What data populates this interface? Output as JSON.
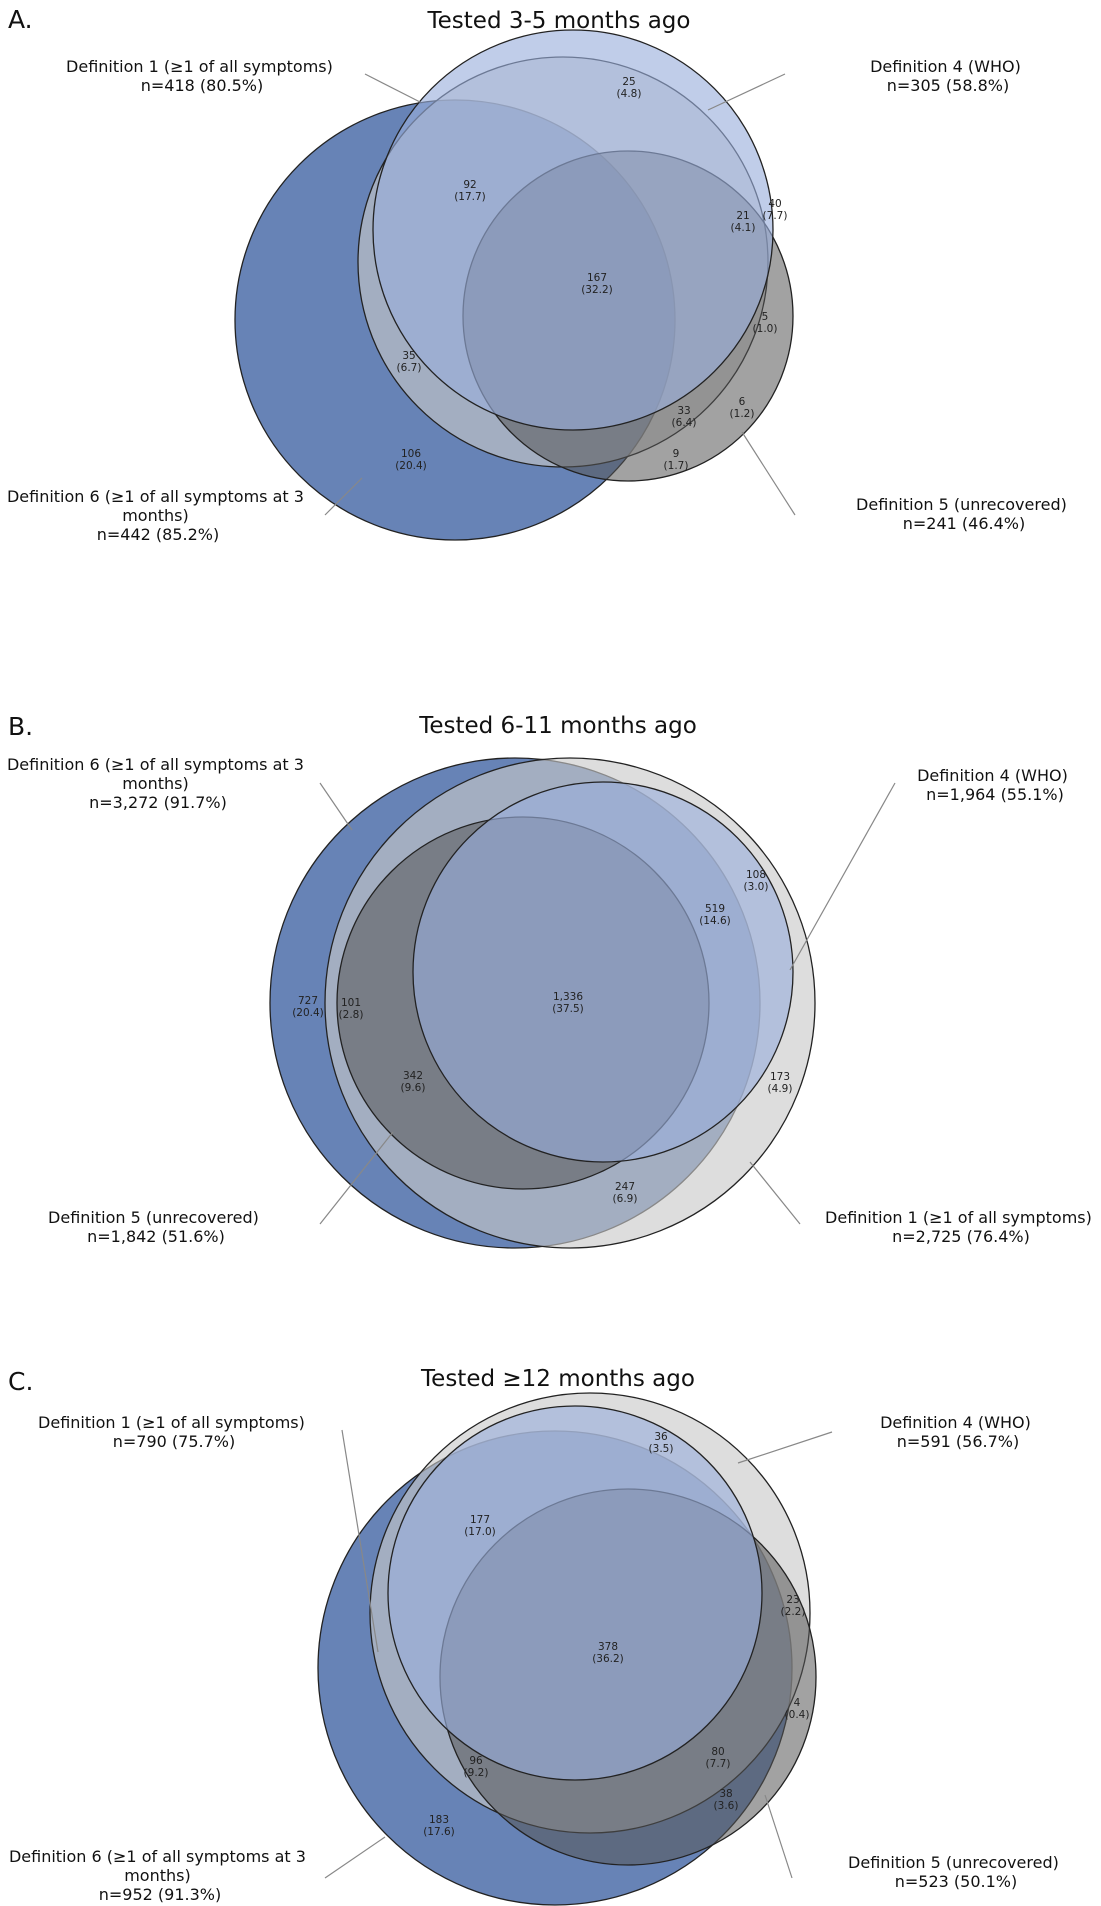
{
  "panels": [
    {
      "letter": "A.",
      "title": "Tested 3-5 months ago",
      "sets": {
        "def1": [
          "Definition 1 (≥1 of all symptoms)",
          "n=418 (80.5%)"
        ],
        "def4": [
          "Definition 4 (WHO)",
          "n=305 (58.8%)"
        ],
        "def5": [
          "Definition 5 (unrecovered)",
          "n=241 (46.4%)"
        ],
        "def6": [
          "Definition 6 (≥1 of all symptoms at 3",
          "months)",
          "n=442 (85.2%)"
        ]
      },
      "regions": [
        [
          "25",
          "(4.8)"
        ],
        [
          "92",
          "(17.7)"
        ],
        [
          "40",
          "(7.7)"
        ],
        [
          "21",
          "(4.1)"
        ],
        [
          "167",
          "(32.2)"
        ],
        [
          "5",
          "(1.0)"
        ],
        [
          "35",
          "(6.7)"
        ],
        [
          "33",
          "(6.4)"
        ],
        [
          "6",
          "(1.2)"
        ],
        [
          "106",
          "(20.4)"
        ],
        [
          "9",
          "(1.7)"
        ]
      ]
    },
    {
      "letter": "B.",
      "title": "Tested 6-11 months ago",
      "sets": {
        "def6": [
          "Definition 6 (≥1 of all symptoms at 3",
          "months)",
          "n=3,272 (91.7%)"
        ],
        "def4": [
          "Definition 4 (WHO)",
          "n=1,964 (55.1%)"
        ],
        "def5": [
          "Definition 5 (unrecovered)",
          "n=1,842 (51.6%)"
        ],
        "def1": [
          "Definition 1 (≥1 of all symptoms)",
          "n=2,725 (76.4%)"
        ]
      },
      "regions": [
        [
          "108",
          "(3.0)"
        ],
        [
          "519",
          "(14.6)"
        ],
        [
          "727",
          "(20.4)"
        ],
        [
          "101",
          "(2.8)"
        ],
        [
          "1,336",
          "(37.5)"
        ],
        [
          "342",
          "(9.6)"
        ],
        [
          "173",
          "(4.9)"
        ],
        [
          "247",
          "(6.9)"
        ]
      ]
    },
    {
      "letter": "C.",
      "title": "Tested ≥12 months ago",
      "sets": {
        "def1": [
          "Definition 1 (≥1 of all symptoms)",
          "n=790 (75.7%)"
        ],
        "def4": [
          "Definition 4 (WHO)",
          "n=591 (56.7%)"
        ],
        "def5": [
          "Definition 5 (unrecovered)",
          "n=523 (50.1%)"
        ],
        "def6": [
          "Definition 6 (≥1 of all symptoms at 3",
          "months)",
          "n=952 (91.3%)"
        ]
      },
      "regions": [
        [
          "36",
          "(3.5)"
        ],
        [
          "177",
          "(17.0)"
        ],
        [
          "23",
          "(2.2)"
        ],
        [
          "378",
          "(36.2)"
        ],
        [
          "4",
          "(0.4)"
        ],
        [
          "96",
          "(9.2)"
        ],
        [
          "80",
          "(7.7)"
        ],
        [
          "38",
          "(3.6)"
        ],
        [
          "183",
          "(17.6)"
        ]
      ]
    }
  ],
  "colors": {
    "def6": "#5b7ab0",
    "def1": "#c8c8c8",
    "def4": "#9aaedb",
    "def5": "#555555"
  }
}
